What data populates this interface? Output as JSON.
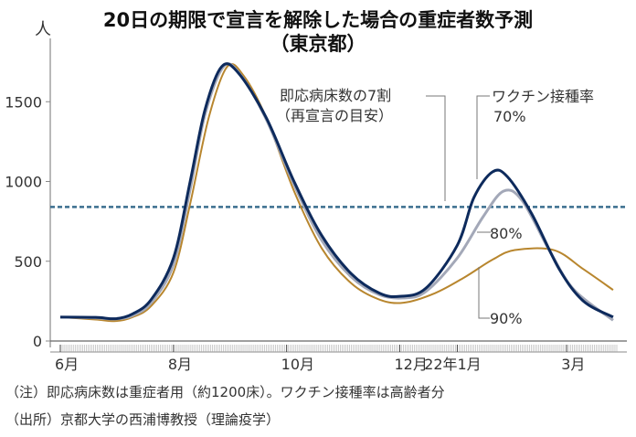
{
  "chart_data": {
    "type": "line",
    "title": "20日の期限で宣言を解除した場合の重症者数予測",
    "subtitle": "（東京都）",
    "ylabel": "人",
    "ylim": [
      0,
      1800
    ],
    "yticks": [
      0,
      500,
      1000,
      1500
    ],
    "xlim": [
      "2021-06-01",
      "2022-03-31"
    ],
    "xticks": [
      {
        "date": "2021-06-01",
        "label": "6月"
      },
      {
        "date": "2021-08-01",
        "label": "8月"
      },
      {
        "date": "2021-10-01",
        "label": "10月"
      },
      {
        "date": "2021-12-01",
        "label": "12月"
      },
      {
        "date": "2022-01-01",
        "label": "22年1月"
      },
      {
        "date": "2022-03-01",
        "label": "3月"
      }
    ],
    "grid": false,
    "threshold": {
      "value": 840,
      "label_line1": "即応病床数の7割",
      "label_line2": "（再宣言の目安）",
      "color": "#3a6e8f"
    },
    "legend_title": "ワクチン接種率",
    "series": [
      {
        "name": "70%",
        "color": "#0d2a5c",
        "points": [
          [
            "2021-06-01",
            150
          ],
          [
            "2021-06-20",
            148
          ],
          [
            "2021-07-01",
            140
          ],
          [
            "2021-07-10",
            170
          ],
          [
            "2021-07-20",
            260
          ],
          [
            "2021-08-01",
            520
          ],
          [
            "2021-08-10",
            1000
          ],
          [
            "2021-08-18",
            1450
          ],
          [
            "2021-08-27",
            1720
          ],
          [
            "2021-09-05",
            1680
          ],
          [
            "2021-09-20",
            1400
          ],
          [
            "2021-10-05",
            1000
          ],
          [
            "2021-10-20",
            660
          ],
          [
            "2021-11-05",
            420
          ],
          [
            "2021-11-20",
            300
          ],
          [
            "2021-12-01",
            280
          ],
          [
            "2021-12-15",
            330
          ],
          [
            "2022-01-01",
            600
          ],
          [
            "2022-01-10",
            900
          ],
          [
            "2022-01-20",
            1060
          ],
          [
            "2022-01-28",
            1030
          ],
          [
            "2022-02-10",
            800
          ],
          [
            "2022-02-25",
            450
          ],
          [
            "2022-03-10",
            250
          ],
          [
            "2022-03-26",
            150
          ]
        ]
      },
      {
        "name": "80%",
        "color": "#a3a8b8",
        "points": [
          [
            "2021-06-01",
            150
          ],
          [
            "2021-06-20",
            145
          ],
          [
            "2021-07-01",
            138
          ],
          [
            "2021-07-10",
            160
          ],
          [
            "2021-07-20",
            240
          ],
          [
            "2021-08-01",
            480
          ],
          [
            "2021-08-10",
            950
          ],
          [
            "2021-08-18",
            1420
          ],
          [
            "2021-08-28",
            1720
          ],
          [
            "2021-09-06",
            1670
          ],
          [
            "2021-09-20",
            1390
          ],
          [
            "2021-10-05",
            980
          ],
          [
            "2021-10-20",
            630
          ],
          [
            "2021-11-05",
            400
          ],
          [
            "2021-11-20",
            290
          ],
          [
            "2021-12-03",
            270
          ],
          [
            "2021-12-15",
            310
          ],
          [
            "2022-01-01",
            520
          ],
          [
            "2022-01-15",
            780
          ],
          [
            "2022-01-26",
            940
          ],
          [
            "2022-02-05",
            880
          ],
          [
            "2022-02-20",
            560
          ],
          [
            "2022-03-05",
            320
          ],
          [
            "2022-03-26",
            130
          ]
        ]
      },
      {
        "name": "90%",
        "color": "#b8862e",
        "points": [
          [
            "2021-06-01",
            150
          ],
          [
            "2021-06-20",
            135
          ],
          [
            "2021-07-01",
            125
          ],
          [
            "2021-07-10",
            150
          ],
          [
            "2021-07-20",
            220
          ],
          [
            "2021-08-01",
            430
          ],
          [
            "2021-08-10",
            860
          ],
          [
            "2021-08-20",
            1400
          ],
          [
            "2021-08-30",
            1720
          ],
          [
            "2021-09-08",
            1660
          ],
          [
            "2021-09-20",
            1400
          ],
          [
            "2021-10-05",
            940
          ],
          [
            "2021-10-20",
            580
          ],
          [
            "2021-11-05",
            360
          ],
          [
            "2021-11-20",
            260
          ],
          [
            "2021-12-03",
            240
          ],
          [
            "2021-12-20",
            300
          ],
          [
            "2022-01-05",
            400
          ],
          [
            "2022-01-20",
            510
          ],
          [
            "2022-02-01",
            570
          ],
          [
            "2022-02-22",
            570
          ],
          [
            "2022-03-10",
            450
          ],
          [
            "2022-03-26",
            320
          ]
        ]
      }
    ]
  },
  "notes": {
    "note1": "（注）即応病床数は重症者用（約1200床）。ワクチン接種率は高齢者分",
    "source": "（出所）京都大学の西浦博教授（理論疫学）"
  }
}
